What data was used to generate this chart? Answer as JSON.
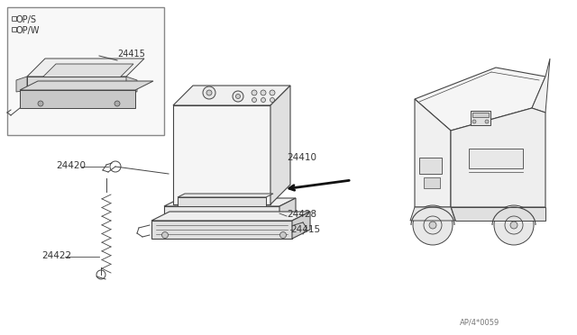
{
  "bg_color": "#ffffff",
  "line_color": "#444444",
  "text_color": "#333333",
  "diagram_code": "AP/4*0059",
  "figsize": [
    6.4,
    3.72
  ],
  "dpi": 100
}
